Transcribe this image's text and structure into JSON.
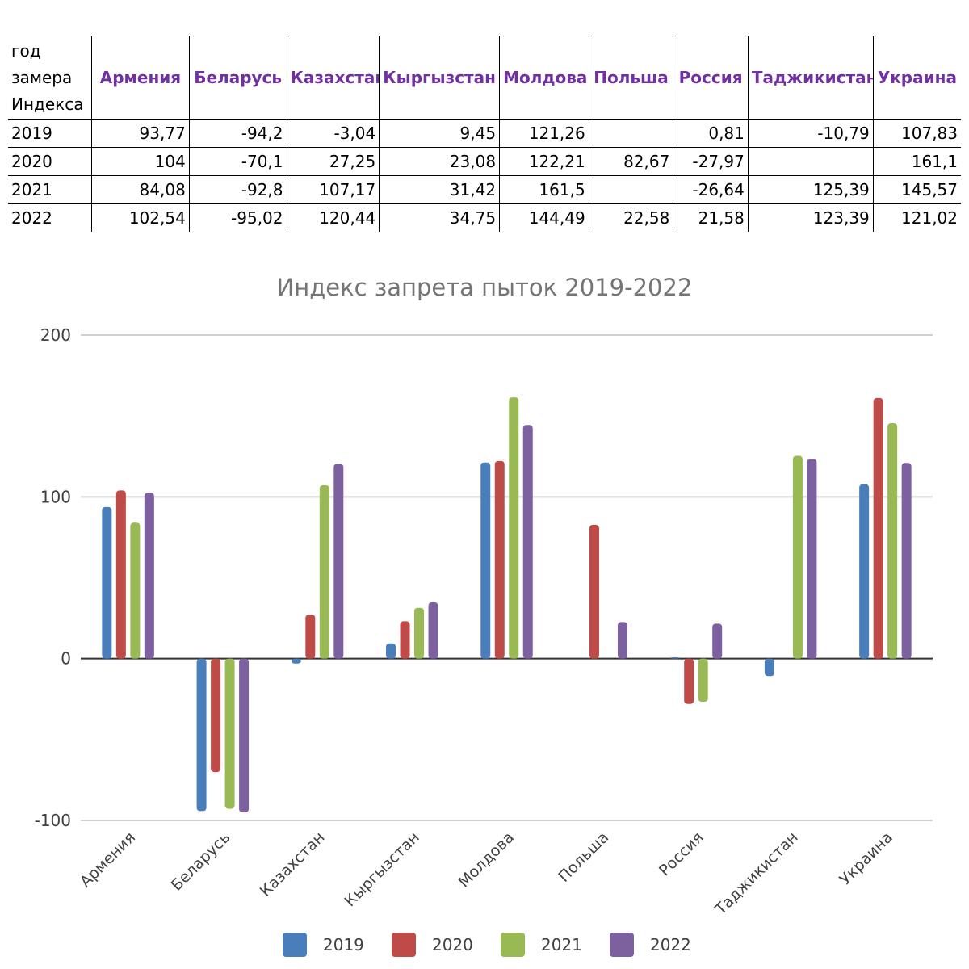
{
  "table": {
    "corner_header": "год замера Индекса",
    "columns": [
      "Армения",
      "Беларусь",
      "Казахстан",
      "Кыргызстан",
      "Молдова",
      "Польша",
      "Россия",
      "Таджикистан",
      "Украина"
    ],
    "rows": [
      {
        "year": "2019",
        "cells": [
          "93,77",
          "-94,2",
          "-3,04",
          "9,45",
          "121,26",
          "",
          "0,81",
          "-10,79",
          "107,83"
        ]
      },
      {
        "year": "2020",
        "cells": [
          "104",
          "-70,1",
          "27,25",
          "23,08",
          "122,21",
          "82,67",
          "-27,97",
          "",
          "161,1"
        ]
      },
      {
        "year": "2021",
        "cells": [
          "84,08",
          "-92,8",
          "107,17",
          "31,42",
          "161,5",
          "",
          "-26,64",
          "125,39",
          "145,57"
        ]
      },
      {
        "year": "2022",
        "cells": [
          "102,54",
          "-95,02",
          "120,44",
          "34,75",
          "144,49",
          "22,58",
          "21,58",
          "123,39",
          "121,02"
        ]
      }
    ]
  },
  "chart_data": {
    "type": "bar",
    "title": "Индекс запрета пыток 2019-2022",
    "xlabel": "",
    "ylabel": "",
    "categories": [
      "Армения",
      "Беларусь",
      "Казахстан",
      "Кыргызстан",
      "Молдова",
      "Польша",
      "Россия",
      "Таджикистан",
      "Украина"
    ],
    "series": [
      {
        "name": "2019",
        "color": "#4a7ebb",
        "values": [
          93.77,
          -94.2,
          -3.04,
          9.45,
          121.26,
          null,
          0.81,
          -10.79,
          107.83
        ]
      },
      {
        "name": "2020",
        "color": "#be4b48",
        "values": [
          104,
          -70.1,
          27.25,
          23.08,
          122.21,
          82.67,
          -27.97,
          null,
          161.1
        ]
      },
      {
        "name": "2021",
        "color": "#98b954",
        "values": [
          84.08,
          -92.8,
          107.17,
          31.42,
          161.5,
          null,
          -26.64,
          125.39,
          145.57
        ]
      },
      {
        "name": "2022",
        "color": "#7d60a0",
        "values": [
          102.54,
          -95.02,
          120.44,
          34.75,
          144.49,
          22.58,
          21.58,
          123.39,
          121.02
        ]
      }
    ],
    "ylim": [
      -100,
      200
    ],
    "yticks": [
      "200",
      "100",
      "0",
      "-100"
    ],
    "grid": true,
    "legend": "bottom"
  }
}
